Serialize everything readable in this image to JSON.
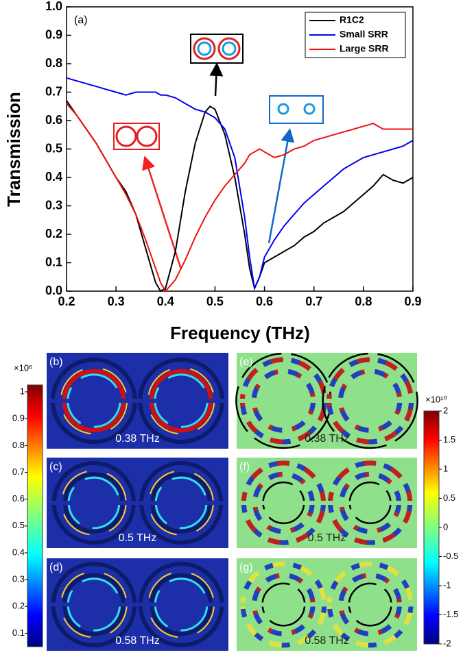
{
  "chart_data": {
    "type": "line",
    "annotation": "(a)",
    "x_label": "Frequency (THz)",
    "y_label": "Transmission",
    "x": [
      0.2,
      0.22,
      0.24,
      0.26,
      0.28,
      0.3,
      0.32,
      0.34,
      0.36,
      0.38,
      0.39,
      0.4,
      0.42,
      0.44,
      0.46,
      0.48,
      0.49,
      0.5,
      0.52,
      0.54,
      0.56,
      0.57,
      0.58,
      0.59,
      0.6,
      0.62,
      0.64,
      0.66,
      0.68,
      0.7,
      0.72,
      0.74,
      0.76,
      0.78,
      0.8,
      0.82,
      0.84,
      0.86,
      0.88,
      0.9
    ],
    "series": [
      {
        "name": "R1C2",
        "color": "#000000",
        "values": [
          0.67,
          0.62,
          0.57,
          0.52,
          0.46,
          0.4,
          0.35,
          0.27,
          0.15,
          0.03,
          0.0,
          0.01,
          0.14,
          0.35,
          0.52,
          0.63,
          0.65,
          0.64,
          0.55,
          0.4,
          0.2,
          0.08,
          0.01,
          0.05,
          0.1,
          0.12,
          0.14,
          0.16,
          0.19,
          0.21,
          0.24,
          0.26,
          0.28,
          0.31,
          0.34,
          0.37,
          0.41,
          0.39,
          0.38,
          0.4
        ]
      },
      {
        "name": "Small SRR",
        "color": "#0000ee",
        "values": [
          0.75,
          0.74,
          0.73,
          0.72,
          0.71,
          0.7,
          0.69,
          0.7,
          0.7,
          0.7,
          0.69,
          0.69,
          0.68,
          0.66,
          0.64,
          0.63,
          0.62,
          0.61,
          0.57,
          0.47,
          0.26,
          0.12,
          0.01,
          0.05,
          0.12,
          0.18,
          0.23,
          0.27,
          0.31,
          0.34,
          0.37,
          0.4,
          0.43,
          0.45,
          0.47,
          0.48,
          0.49,
          0.5,
          0.51,
          0.53
        ]
      },
      {
        "name": "Large SRR",
        "color": "#ee1111",
        "values": [
          0.66,
          0.62,
          0.57,
          0.52,
          0.46,
          0.4,
          0.34,
          0.27,
          0.18,
          0.08,
          0.03,
          0.0,
          0.04,
          0.11,
          0.19,
          0.26,
          0.29,
          0.32,
          0.37,
          0.41,
          0.45,
          0.48,
          0.49,
          0.5,
          0.49,
          0.47,
          0.48,
          0.5,
          0.51,
          0.53,
          0.54,
          0.55,
          0.56,
          0.57,
          0.58,
          0.59,
          0.57,
          0.57,
          0.57,
          0.57
        ]
      }
    ],
    "xlim": [
      0.2,
      0.9
    ],
    "xticks": [
      0.2,
      0.3,
      0.4,
      0.5,
      0.6,
      0.7,
      0.8,
      0.9
    ],
    "ylim": [
      0,
      1
    ],
    "yticks": [
      {
        "value": 0,
        "label": "0.0"
      },
      0.1,
      0.2,
      0.3,
      0.4,
      0.5,
      0.6,
      0.7,
      0.8,
      0.9,
      {
        "value": 1,
        "label": "1.0"
      }
    ],
    "legend": "upper right"
  },
  "panels": [
    {
      "label": "(b)",
      "caption": "0.38 THz"
    },
    {
      "label": "(c)",
      "caption": "0.5 THz"
    },
    {
      "label": "(d)",
      "caption": "0.58 THz"
    },
    {
      "label": "(e)",
      "caption": "0.38 THz"
    },
    {
      "label": "(f)",
      "caption": "0.5 THz"
    },
    {
      "label": "(g)",
      "caption": "0.58 THz"
    }
  ],
  "colorbars": [
    {
      "multiplier": "×10⁶",
      "lim": [
        0.05,
        1
      ],
      "ticks": [
        1,
        0.9,
        0.8,
        0.7,
        0.6,
        0.5,
        0.4,
        0.3,
        0.2,
        0.1
      ]
    },
    {
      "multiplier": "×10¹⁰",
      "lim": [
        -2,
        2
      ],
      "ticks": [
        2,
        1.5,
        1,
        0.5,
        0,
        -0.5,
        -1,
        -1.5,
        -2
      ]
    }
  ]
}
